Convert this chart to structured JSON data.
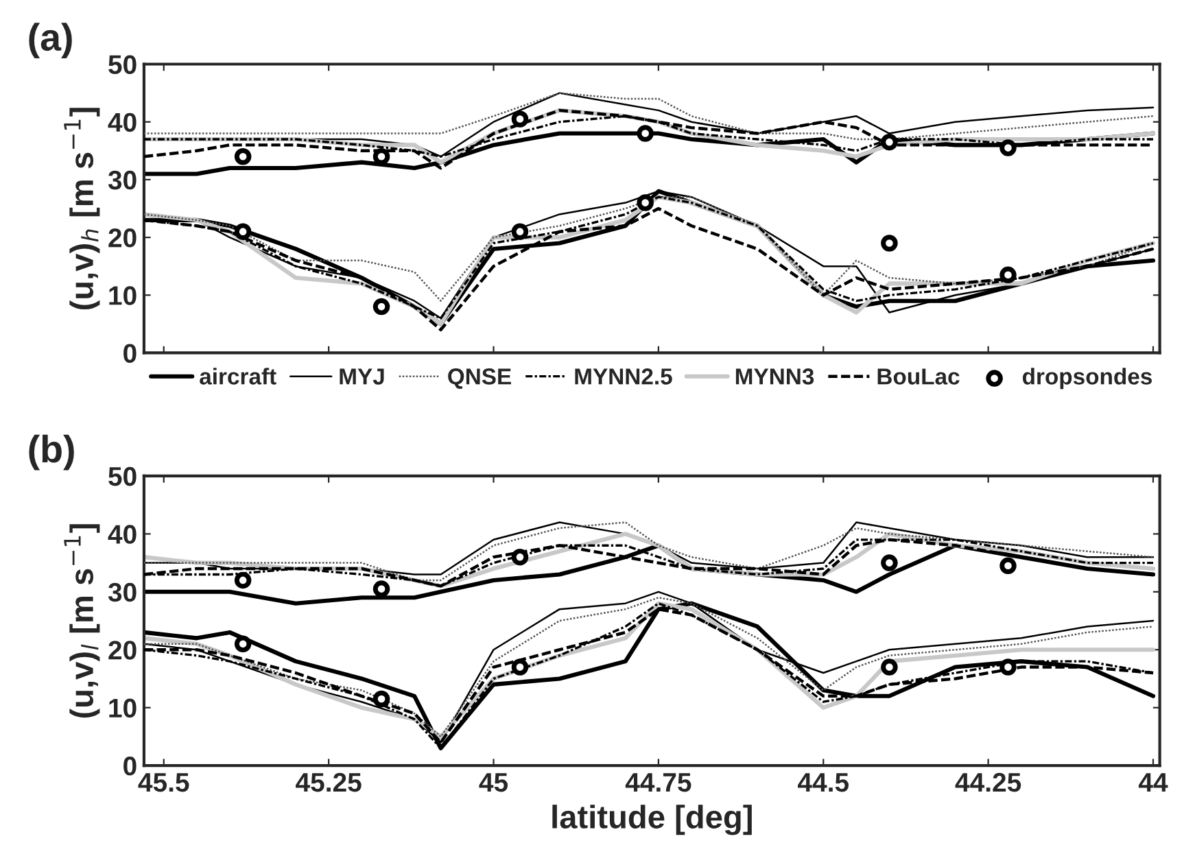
{
  "chart_data": [
    {
      "type": "line",
      "title": "(a)",
      "ylabel": "(u,v)$_{h}$ [m s$^{−1}$]",
      "xlim": [
        45.53,
        43.99
      ],
      "xticks": [
        45.5,
        45.25,
        45,
        44.75,
        44.5,
        44.25,
        44
      ],
      "ylim": [
        0,
        50
      ],
      "yticks": [
        0,
        10,
        20,
        30,
        40,
        50
      ],
      "tick_labels": "y",
      "grid": false,
      "legend": "bottom",
      "x": [
        45.53,
        45.45,
        45.4,
        45.3,
        45.2,
        45.12,
        45.08,
        45.0,
        44.9,
        44.8,
        44.75,
        44.7,
        44.6,
        44.5,
        44.45,
        44.4,
        44.3,
        44.2,
        44.1,
        44.0
      ],
      "series": [
        {
          "name": "aircraft",
          "color": "#000000",
          "line_style": "solid",
          "values": [
            31,
            31,
            32,
            32,
            33,
            32,
            33,
            36,
            38,
            38,
            38,
            37,
            36,
            37,
            33,
            37,
            36,
            36,
            37,
            38
          ]
        },
        {
          "name": "MYJ",
          "color": "#000000",
          "line_style": "solid",
          "values": [
            37,
            37,
            37,
            37,
            37,
            36,
            34,
            40,
            45,
            43,
            42,
            40,
            38,
            40,
            41,
            38,
            40,
            41,
            42,
            42.5
          ]
        },
        {
          "name": "QNSE",
          "color": "#555555",
          "line_style": "dotted",
          "values": [
            38,
            38,
            38,
            38,
            38,
            38,
            38,
            41,
            45,
            44,
            44,
            41,
            38,
            38,
            37,
            37,
            38,
            39,
            40,
            41
          ]
        },
        {
          "name": "MYNN2.5",
          "color": "#000000",
          "line_style": "dashdot",
          "values": [
            37,
            37,
            37,
            37,
            36,
            35,
            34,
            37,
            40,
            41,
            40,
            38,
            37,
            36,
            35,
            37,
            37,
            36,
            37,
            37
          ]
        },
        {
          "name": "MYNN3",
          "color": "#c8c8c8",
          "line_style": "solid",
          "values": [
            37,
            37,
            37,
            37,
            36,
            36,
            33,
            38,
            42,
            41,
            40,
            38,
            36,
            35,
            34,
            36,
            37,
            37,
            37,
            38
          ]
        },
        {
          "name": "BouLac",
          "color": "#000000",
          "line_style": "dashed",
          "values": [
            34,
            35,
            36,
            36,
            35,
            35,
            32,
            38,
            42,
            41,
            40,
            39,
            38,
            40,
            39,
            36,
            36,
            36,
            36,
            36
          ]
        },
        {
          "color": "#000000",
          "line_style": "solid",
          "values": [
            23,
            23,
            22,
            18,
            13,
            8,
            5,
            18,
            19,
            22,
            28,
            26,
            22,
            10,
            8,
            9,
            9,
            12,
            15,
            16
          ]
        },
        {
          "color": "#000000",
          "line_style": "solid",
          "values": [
            24,
            23,
            20,
            15,
            13,
            9,
            6,
            20,
            24,
            26,
            28,
            27,
            22,
            15,
            15,
            7,
            10,
            12,
            15,
            18
          ]
        },
        {
          "color": "#555555",
          "line_style": "dotted",
          "values": [
            24,
            23,
            22,
            16,
            16,
            14,
            9,
            20,
            22,
            25,
            27,
            27,
            22,
            10,
            16,
            13,
            12,
            13,
            15,
            19
          ]
        },
        {
          "color": "#000000",
          "line_style": "dashdot",
          "values": [
            23,
            22,
            21,
            15,
            12,
            8,
            6,
            19,
            21,
            24,
            27,
            26,
            22,
            11,
            9,
            10,
            11,
            13,
            16,
            19
          ]
        },
        {
          "color": "#c8c8c8",
          "line_style": "solid",
          "values": [
            24,
            23,
            21,
            13,
            12,
            8,
            5,
            20,
            20,
            23,
            27,
            26,
            22,
            10,
            7,
            12,
            12,
            12,
            16,
            19
          ]
        },
        {
          "color": "#000000",
          "line_style": "dashed",
          "values": [
            23,
            22,
            21,
            16,
            13,
            8,
            4,
            15,
            21,
            22,
            25,
            22,
            18,
            10,
            13,
            11,
            12,
            13,
            15,
            18
          ]
        },
        {
          "name": "dropsondes",
          "type": "scatter",
          "marker": "circle",
          "color": "#000000",
          "x": [
            45.38,
            45.17,
            44.96,
            44.77,
            44.4,
            44.22,
            45.38,
            45.17,
            44.96,
            44.77,
            44.4,
            44.22
          ],
          "values": [
            34,
            34,
            40.5,
            38,
            36.5,
            35.5,
            21,
            8,
            21,
            26,
            19,
            13.5
          ]
        }
      ]
    },
    {
      "type": "line",
      "title": "(b)",
      "ylabel": "(u,v)$_{l}$ [m s$^{−1}$]",
      "xlabel": "latitude [deg]",
      "xlim": [
        45.53,
        43.99
      ],
      "xticks": [
        45.5,
        45.25,
        45,
        44.75,
        44.5,
        44.25,
        44
      ],
      "ylim": [
        0,
        50
      ],
      "yticks": [
        0,
        10,
        20,
        30,
        40,
        50
      ],
      "grid": false,
      "x": [
        45.53,
        45.45,
        45.4,
        45.3,
        45.2,
        45.12,
        45.08,
        45.0,
        44.9,
        44.8,
        44.75,
        44.7,
        44.6,
        44.5,
        44.45,
        44.4,
        44.3,
        44.2,
        44.1,
        44.0
      ],
      "series": [
        {
          "color": "#000000",
          "line_style": "solid",
          "values": [
            30,
            30,
            30,
            28,
            29,
            29,
            30,
            32,
            33,
            36,
            38,
            34,
            33,
            32,
            30,
            33,
            38,
            36,
            34,
            33
          ]
        },
        {
          "color": "#000000",
          "line_style": "solid",
          "values": [
            35,
            35,
            34,
            34,
            34,
            33,
            33,
            39,
            42,
            40,
            38,
            35,
            34,
            35,
            42,
            41,
            39,
            38,
            36,
            36
          ]
        },
        {
          "color": "#555555",
          "line_style": "dotted",
          "values": [
            35,
            35,
            35,
            35,
            35,
            32,
            32,
            38,
            41,
            42,
            38,
            36,
            34,
            38,
            41,
            40,
            39,
            38,
            37,
            36
          ]
        },
        {
          "color": "#000000",
          "line_style": "dashdot",
          "values": [
            33,
            33,
            33,
            34,
            33,
            32,
            31,
            35,
            38,
            38,
            36,
            34,
            33,
            34,
            39,
            39,
            39,
            37,
            35,
            35
          ]
        },
        {
          "color": "#c8c8c8",
          "line_style": "solid",
          "values": [
            36,
            35,
            35,
            34,
            34,
            32,
            31,
            34,
            37,
            40,
            38,
            34,
            33,
            33,
            36,
            40,
            38,
            37,
            35,
            34
          ]
        },
        {
          "color": "#000000",
          "line_style": "dashed",
          "values": [
            33,
            34,
            34,
            34,
            34,
            32,
            31,
            36,
            38,
            36,
            35,
            34,
            34,
            33,
            38,
            39,
            38,
            36,
            34,
            33
          ]
        },
        {
          "color": "#000000",
          "line_style": "solid",
          "values": [
            23,
            22,
            23,
            18,
            15,
            12,
            3,
            14,
            15,
            18,
            27,
            28,
            24,
            13,
            12,
            12,
            17,
            18,
            17,
            12
          ]
        },
        {
          "color": "#000000",
          "line_style": "solid",
          "values": [
            21,
            20,
            18,
            14,
            11,
            8,
            4,
            20,
            27,
            28,
            30,
            28,
            20,
            16,
            18,
            20,
            21,
            22,
            24,
            25
          ]
        },
        {
          "color": "#555555",
          "line_style": "dotted",
          "values": [
            21,
            21,
            19,
            15,
            13,
            9,
            5,
            18,
            25,
            27,
            29,
            28,
            22,
            13,
            17,
            19,
            20,
            21,
            23,
            24
          ]
        },
        {
          "color": "#000000",
          "line_style": "dashdot",
          "values": [
            20,
            19,
            18,
            15,
            12,
            8,
            3,
            15,
            19,
            24,
            28,
            26,
            20,
            11,
            12,
            14,
            16,
            18,
            18,
            16
          ]
        },
        {
          "color": "#c8c8c8",
          "line_style": "solid",
          "values": [
            22,
            21,
            19,
            14,
            10,
            8,
            5,
            15,
            19,
            22,
            28,
            27,
            20,
            10,
            12,
            18,
            19,
            20,
            20,
            20
          ]
        },
        {
          "color": "#000000",
          "line_style": "dashed",
          "values": [
            20,
            20,
            19,
            16,
            12,
            9,
            4,
            17,
            20,
            23,
            27,
            26,
            20,
            12,
            12,
            14,
            15,
            17,
            17,
            16
          ]
        },
        {
          "type": "scatter",
          "marker": "circle",
          "color": "#000000",
          "x": [
            45.38,
            45.17,
            44.96,
            44.4,
            44.22,
            45.38,
            45.17,
            44.96,
            44.4,
            44.22
          ],
          "values": [
            32,
            30.5,
            36,
            35,
            34.5,
            21,
            11.5,
            17,
            17,
            17
          ]
        }
      ]
    }
  ]
}
